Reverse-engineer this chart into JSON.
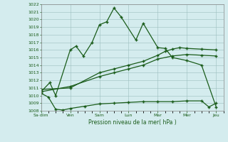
{
  "xlabel": "Pression niveau de la mer( hPa )",
  "x_labels": [
    "Sa·dim",
    "Ven",
    "Sam",
    "Lun",
    "Mar",
    "Mer",
    "Jeu"
  ],
  "x_positions": [
    0,
    2,
    4,
    6,
    8,
    10,
    12
  ],
  "ylim": [
    1008,
    1022
  ],
  "yticks": [
    1008,
    1009,
    1010,
    1011,
    1012,
    1013,
    1014,
    1015,
    1016,
    1017,
    1018,
    1019,
    1020,
    1021,
    1022
  ],
  "bg_color": "#d4ecee",
  "grid_color": "#9bbfbf",
  "line_color": "#1a5c1a",
  "line1_x": [
    0,
    0.6,
    1.0,
    2.0,
    2.4,
    2.9,
    3.5,
    4.0,
    4.5,
    5.0,
    5.5,
    6.5,
    7.0,
    8.0,
    8.5,
    9.0,
    10.0,
    11.0,
    12.0
  ],
  "line1_y": [
    1010.5,
    1011.7,
    1010.0,
    1016.0,
    1016.5,
    1015.2,
    1017.0,
    1019.3,
    1019.7,
    1021.5,
    1020.3,
    1017.3,
    1019.5,
    1016.3,
    1016.2,
    1015.0,
    1014.6,
    1014.0,
    1008.5
  ],
  "line2_x": [
    0,
    2.0,
    4.0,
    5.0,
    6.0,
    7.0,
    8.0,
    8.5,
    9.0,
    9.5,
    10.0,
    11.0,
    12.0
  ],
  "line2_y": [
    1010.8,
    1011.0,
    1013.0,
    1013.5,
    1014.0,
    1014.5,
    1015.3,
    1015.8,
    1016.1,
    1016.3,
    1016.2,
    1016.1,
    1016.0
  ],
  "line3_x": [
    0,
    2.0,
    4.0,
    5.0,
    6.0,
    7.0,
    8.0,
    9.0,
    10.0,
    11.0,
    12.0
  ],
  "line3_y": [
    1010.5,
    1011.2,
    1012.5,
    1013.0,
    1013.5,
    1014.0,
    1014.8,
    1015.2,
    1015.4,
    1015.3,
    1015.2
  ],
  "line4_x": [
    0,
    0.5,
    1.0,
    1.5,
    2.0,
    3.0,
    4.0,
    5.0,
    6.0,
    7.0,
    8.0,
    9.0,
    10.0,
    11.0,
    11.5,
    12.0
  ],
  "line4_y": [
    1010.3,
    1009.8,
    1008.2,
    1008.1,
    1008.3,
    1008.6,
    1008.9,
    1009.0,
    1009.1,
    1009.2,
    1009.2,
    1009.2,
    1009.3,
    1009.3,
    1008.5,
    1009.0
  ]
}
